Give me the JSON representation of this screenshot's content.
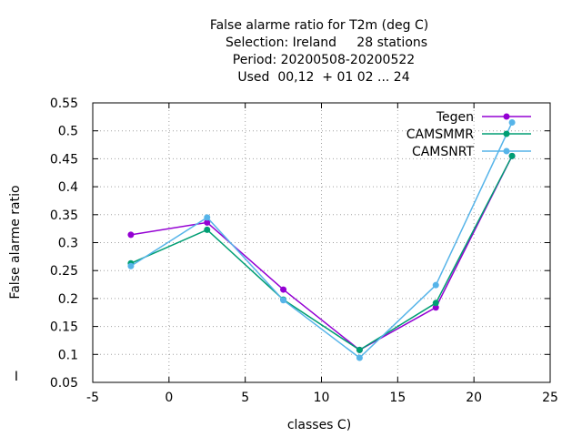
{
  "chart_data": {
    "type": "line",
    "title_lines": [
      "False alarme ratio  for T2m (deg C)",
      "Selection: Ireland     28 stations",
      "Period: 20200508-20200522",
      "Used  00,12  + 01 02 ... 24"
    ],
    "xlabel": "classes C)",
    "ylabel": "False alarme ratio",
    "side_marker": "I",
    "xlim": [
      -5,
      25
    ],
    "ylim": [
      0.05,
      0.55
    ],
    "xticks": [
      -5,
      0,
      5,
      10,
      15,
      20,
      25
    ],
    "xtick_labels": [
      "-5",
      "0",
      "5",
      "10",
      "15",
      "20",
      "25"
    ],
    "yticks": [
      0.05,
      0.1,
      0.15,
      0.2,
      0.25,
      0.3,
      0.35,
      0.4,
      0.45,
      0.5,
      0.55
    ],
    "ytick_labels": [
      "0.05",
      "0.1",
      "0.15",
      "0.2",
      "0.25",
      "0.3",
      "0.35",
      "0.4",
      "0.45",
      "0.5",
      "0.55"
    ],
    "grid": true,
    "legend_position": "top-right",
    "x": [
      -2.5,
      2.5,
      7.5,
      12.5,
      17.5,
      22.5
    ],
    "series": [
      {
        "name": "Tegen",
        "color": "#9400d3",
        "values": [
          0.314,
          0.336,
          0.216,
          0.108,
          0.184,
          0.455
        ]
      },
      {
        "name": "CAMSMMR",
        "color": "#009e73",
        "values": [
          0.263,
          0.323,
          0.198,
          0.108,
          0.192,
          0.455
        ]
      },
      {
        "name": "CAMSNRT",
        "color": "#56b4e9",
        "values": [
          0.258,
          0.345,
          0.197,
          0.094,
          0.224,
          0.515
        ]
      }
    ]
  }
}
